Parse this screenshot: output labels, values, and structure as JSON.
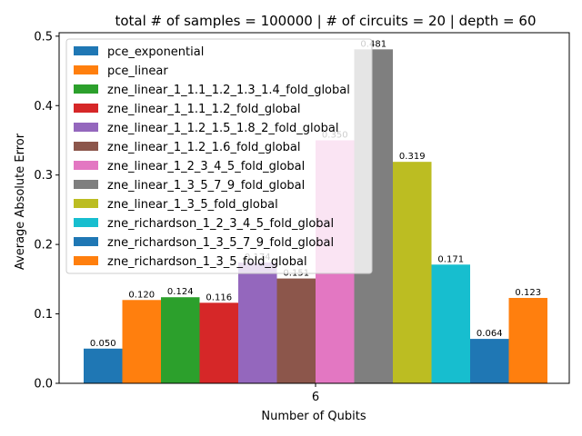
{
  "chart_data": {
    "type": "bar",
    "title": "total # of samples = 100000 | # of circuits = 20 | depth = 60",
    "xlabel": "Number of Qubits",
    "ylabel": "Average Absolute Error",
    "categories": [
      "6"
    ],
    "ylim": [
      0,
      0.505
    ],
    "yticks": [
      "0.0",
      "0.1",
      "0.2",
      "0.3",
      "0.4",
      "0.5"
    ],
    "grid": false,
    "legend_position": "upper-left",
    "series": [
      {
        "name": "pce_exponential",
        "color": "#1f77b4",
        "values": [
          0.05
        ],
        "label": "0.050"
      },
      {
        "name": "pce_linear",
        "color": "#ff7f0e",
        "values": [
          0.12
        ],
        "label": "0.120"
      },
      {
        "name": "zne_linear_1_1.1_1.2_1.3_1.4_fold_global",
        "color": "#2ca02c",
        "values": [
          0.124
        ],
        "label": "0.124"
      },
      {
        "name": "zne_linear_1_1.1_1.2_fold_global",
        "color": "#d62728",
        "values": [
          0.116
        ],
        "label": "0.116"
      },
      {
        "name": "zne_linear_1_1.2_1.5_1.8_2_fold_global",
        "color": "#9467bd",
        "values": [
          0.174
        ],
        "label": "0.174"
      },
      {
        "name": "zne_linear_1_1.2_1.6_fold_global",
        "color": "#8c564b",
        "values": [
          0.151
        ],
        "label": "0.151"
      },
      {
        "name": "zne_linear_1_2_3_4_5_fold_global",
        "color": "#e377c2",
        "values": [
          0.35
        ],
        "label": "0.350"
      },
      {
        "name": "zne_linear_1_3_5_7_9_fold_global",
        "color": "#7f7f7f",
        "values": [
          0.481
        ],
        "label": "0.481"
      },
      {
        "name": "zne_linear_1_3_5_fold_global",
        "color": "#bcbd22",
        "values": [
          0.319
        ],
        "label": "0.319"
      },
      {
        "name": "zne_richardson_1_2_3_4_5_fold_global",
        "color": "#17becf",
        "values": [
          0.171
        ],
        "label": "0.171"
      },
      {
        "name": "zne_richardson_1_3_5_7_9_fold_global",
        "color": "#1f77b4",
        "values": [
          0.064
        ],
        "label": "0.064"
      },
      {
        "name": "zne_richardson_1_3_5_fold_global",
        "color": "#ff7f0e",
        "values": [
          0.123
        ],
        "label": "0.123"
      }
    ]
  }
}
